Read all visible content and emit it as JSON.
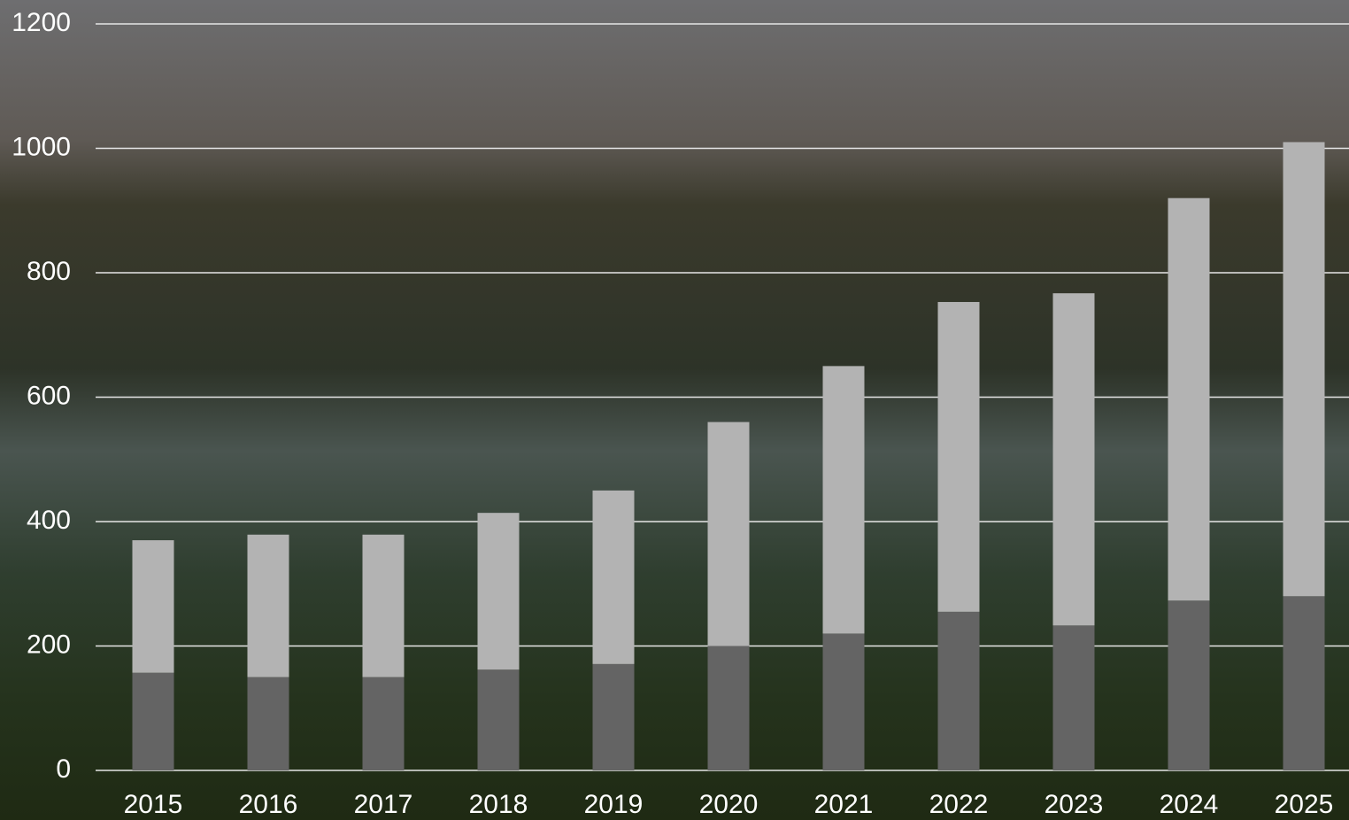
{
  "chart_data": {
    "type": "stacked-bar",
    "categories": [
      "2015",
      "2016",
      "2017",
      "2018",
      "2019",
      "2020",
      "2021",
      "2022",
      "2023",
      "2024",
      "2025"
    ],
    "series": [
      {
        "color": "#646464",
        "values": [
          157,
          150,
          150,
          162,
          171,
          200,
          220,
          255,
          233,
          273,
          280
        ]
      },
      {
        "color": "#b3b3b3",
        "values": [
          213,
          229,
          229,
          252,
          279,
          360,
          430,
          498,
          534,
          647,
          730
        ]
      }
    ],
    "ylim": [
      0,
      1200
    ],
    "yticks": [
      0,
      200,
      400,
      600,
      800,
      1000,
      1200
    ],
    "grid": true
  }
}
